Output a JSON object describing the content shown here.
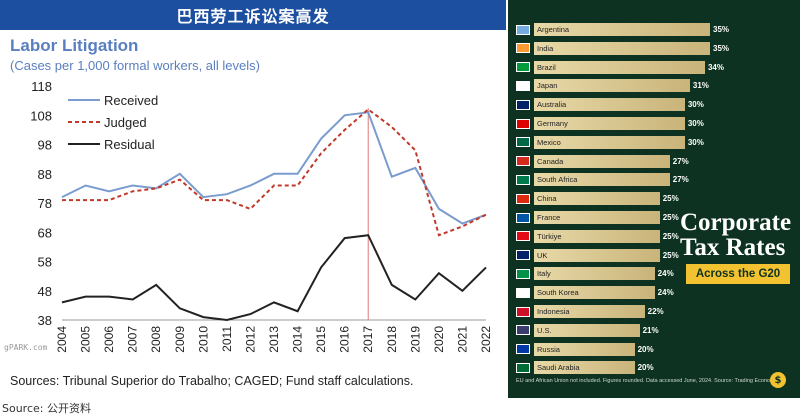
{
  "banner": "巴西劳工诉讼案高发",
  "bottom_source": "Source:  公开资料",
  "watermark": [
    "",
    "gPARK.com"
  ],
  "chart_data": {
    "type": "line",
    "title": "Labor Litigation",
    "subtitle": "(Cases per 1,000 formal workers, all levels)",
    "sources": "Sources: Tribunal Superior do Trabalho; CAGED; Fund staff calculations.",
    "x": [
      2004,
      2005,
      2006,
      2007,
      2008,
      2009,
      2010,
      2011,
      2012,
      2013,
      2014,
      2015,
      2016,
      2017,
      2018,
      2019,
      2020,
      2021,
      2022
    ],
    "yticks": [
      38,
      48,
      58,
      68,
      78,
      88,
      98,
      108,
      118
    ],
    "ylim": [
      38,
      118
    ],
    "vline_x": 2017,
    "series": [
      {
        "name": "Received",
        "color": "#7a9ccf",
        "dash": "solid",
        "values": [
          80,
          84,
          82,
          84,
          83,
          88,
          80,
          81,
          84,
          88,
          88,
          100,
          108,
          109,
          87,
          90,
          76,
          71,
          74
        ]
      },
      {
        "name": "Judged",
        "color": "#c0392b",
        "dash": "dashed",
        "values": [
          79,
          79,
          79,
          82,
          83,
          86,
          79,
          79,
          76,
          84,
          84,
          95,
          103,
          110,
          104,
          96,
          67,
          70,
          74
        ]
      },
      {
        "name": "Residual",
        "color": "#222222",
        "dash": "solid",
        "values": [
          44,
          46,
          46,
          45,
          50,
          42,
          39,
          38,
          40,
          44,
          41,
          56,
          66,
          67,
          50,
          45,
          54,
          48,
          56
        ]
      }
    ]
  },
  "tax": {
    "title_line1": "Corporate",
    "title_line2": "Tax Rates",
    "subtitle": "Across the G20",
    "footnote": "EU and African Union not included. Figures rounded. Data accessed June, 2024. Source: Trading Economics",
    "countries": [
      {
        "name": "Argentina",
        "rate": 35,
        "label": "35%",
        "flag": "#74acdf"
      },
      {
        "name": "India",
        "rate": 35,
        "label": "35%",
        "flag": "#ff9933"
      },
      {
        "name": "Brazil",
        "rate": 34,
        "label": "34%",
        "flag": "#009c3b"
      },
      {
        "name": "Japan",
        "rate": 31,
        "label": "31%",
        "flag": "#ffffff"
      },
      {
        "name": "Australia",
        "rate": 30,
        "label": "30%",
        "flag": "#012169"
      },
      {
        "name": "Germany",
        "rate": 30,
        "label": "30%",
        "flag": "#dd0000"
      },
      {
        "name": "Mexico",
        "rate": 30,
        "label": "30%",
        "flag": "#006847"
      },
      {
        "name": "Canada",
        "rate": 27,
        "label": "27%",
        "flag": "#d52b1e"
      },
      {
        "name": "South Africa",
        "rate": 27,
        "label": "27%",
        "flag": "#007a4d"
      },
      {
        "name": "China",
        "rate": 25,
        "label": "25%",
        "flag": "#de2910"
      },
      {
        "name": "France",
        "rate": 25,
        "label": "25%",
        "flag": "#0055a4"
      },
      {
        "name": "Türkiye",
        "rate": 25,
        "label": "25%",
        "flag": "#e30a17"
      },
      {
        "name": "UK",
        "rate": 25,
        "label": "25%",
        "flag": "#012169"
      },
      {
        "name": "Italy",
        "rate": 24,
        "label": "24%",
        "flag": "#009246"
      },
      {
        "name": "South Korea",
        "rate": 24,
        "label": "24%",
        "flag": "#ffffff"
      },
      {
        "name": "Indonesia",
        "rate": 22,
        "label": "22%",
        "flag": "#ce1126"
      },
      {
        "name": "U.S.",
        "rate": 21,
        "label": "21%",
        "flag": "#3c3b6e"
      },
      {
        "name": "Russia",
        "rate": 20,
        "label": "20%",
        "flag": "#0039a6"
      },
      {
        "name": "Saudi Arabia",
        "rate": 20,
        "label": "20%",
        "flag": "#006c35"
      }
    ]
  }
}
